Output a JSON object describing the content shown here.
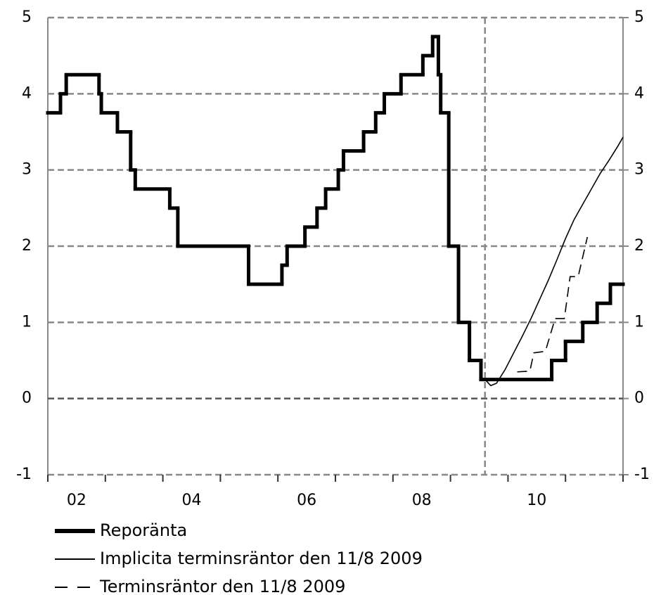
{
  "chart_data": {
    "type": "line",
    "xlim": [
      2002,
      2012
    ],
    "xticks": [
      {
        "value": 2002.5,
        "label": "02"
      },
      {
        "value": 2004.5,
        "label": "04"
      },
      {
        "value": 2006.5,
        "label": "06"
      },
      {
        "value": 2008.5,
        "label": "08"
      },
      {
        "value": 2010.5,
        "label": "10"
      }
    ],
    "minor_xticks": [
      2002,
      2003,
      2004,
      2005,
      2006,
      2007,
      2008,
      2009,
      2010,
      2011,
      2012
    ],
    "ylim": [
      -1,
      5
    ],
    "yticks": [
      -1,
      0,
      1,
      2,
      3,
      4,
      5
    ],
    "y2lim": [
      -1,
      5
    ],
    "y2ticks": [
      -1,
      0,
      1,
      2,
      3,
      4,
      5
    ],
    "grid": true,
    "vline": 2009.6,
    "series": [
      {
        "name": "Reporänta",
        "color": "#000000",
        "style": "step",
        "width": 5,
        "x": [
          2002.0,
          2002.22,
          2002.32,
          2002.89,
          2002.93,
          2003.21,
          2003.44,
          2003.52,
          2004.12,
          2004.26,
          2005.49,
          2006.07,
          2006.16,
          2006.47,
          2006.68,
          2006.83,
          2007.05,
          2007.14,
          2007.49,
          2007.7,
          2007.85,
          2008.14,
          2008.52,
          2008.69,
          2008.79,
          2008.83,
          2008.97,
          2009.14,
          2009.33,
          2009.53,
          2010.76,
          2011.0,
          2011.3,
          2011.55,
          2011.78
        ],
        "values": [
          3.75,
          4.0,
          4.25,
          4.0,
          3.75,
          3.5,
          3.0,
          2.75,
          2.5,
          2.0,
          1.5,
          1.75,
          2.0,
          2.25,
          2.5,
          2.75,
          3.0,
          3.25,
          3.5,
          3.75,
          4.0,
          4.25,
          4.5,
          4.75,
          4.25,
          3.75,
          2.0,
          1.0,
          0.5,
          0.25,
          0.5,
          0.75,
          1.0,
          1.25,
          1.5
        ]
      },
      {
        "name": "Implicita terminsräntor den 11/8 2009",
        "color": "#000000",
        "style": "solid",
        "width": 1.6,
        "x": [
          2009.6,
          2009.7,
          2009.8,
          2009.95,
          2010.1,
          2010.25,
          2010.4,
          2010.55,
          2010.7,
          2010.85,
          2011.0,
          2011.15,
          2011.3,
          2011.45,
          2011.6,
          2011.75,
          2011.9,
          2012.0
        ],
        "values": [
          0.25,
          0.17,
          0.2,
          0.38,
          0.6,
          0.82,
          1.05,
          1.3,
          1.55,
          1.82,
          2.1,
          2.35,
          2.55,
          2.75,
          2.95,
          3.12,
          3.3,
          3.43
        ]
      },
      {
        "name": "Terminsräntor den 11/8 2009",
        "color": "#000000",
        "style": "dashed",
        "width": 1.6,
        "x": [
          2010.16,
          2010.38,
          2010.45,
          2010.65,
          2010.82,
          2010.98,
          2011.08,
          2011.22,
          2011.38
        ],
        "values": [
          0.35,
          0.36,
          0.6,
          0.62,
          1.05,
          1.05,
          1.6,
          1.6,
          2.12
        ]
      }
    ]
  }
}
